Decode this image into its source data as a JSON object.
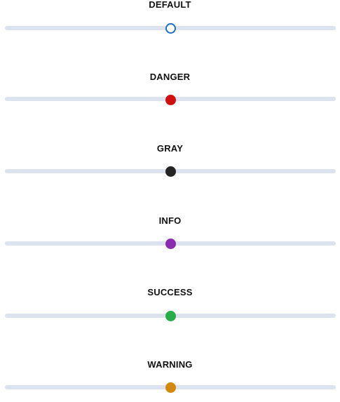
{
  "sliders": [
    {
      "label": "DEFAULT",
      "value": 50,
      "min": 0,
      "max": 100,
      "thumb_color": "#1e6fc4",
      "thumb_style": "hollow"
    },
    {
      "label": "DANGER",
      "value": 50,
      "min": 0,
      "max": 100,
      "thumb_color": "#d20f0f",
      "thumb_style": "filled"
    },
    {
      "label": "GRAY",
      "value": 50,
      "min": 0,
      "max": 100,
      "thumb_color": "#242424",
      "thumb_style": "filled"
    },
    {
      "label": "INFO",
      "value": 50,
      "min": 0,
      "max": 100,
      "thumb_color": "#8a2bb0",
      "thumb_style": "filled"
    },
    {
      "label": "SUCCESS",
      "value": 50,
      "min": 0,
      "max": 100,
      "thumb_color": "#27ad4a",
      "thumb_style": "filled"
    },
    {
      "label": "WARNING",
      "value": 50,
      "min": 0,
      "max": 100,
      "thumb_color": "#d18a0e",
      "thumb_style": "filled"
    }
  ],
  "track_color": "#dce3ee"
}
